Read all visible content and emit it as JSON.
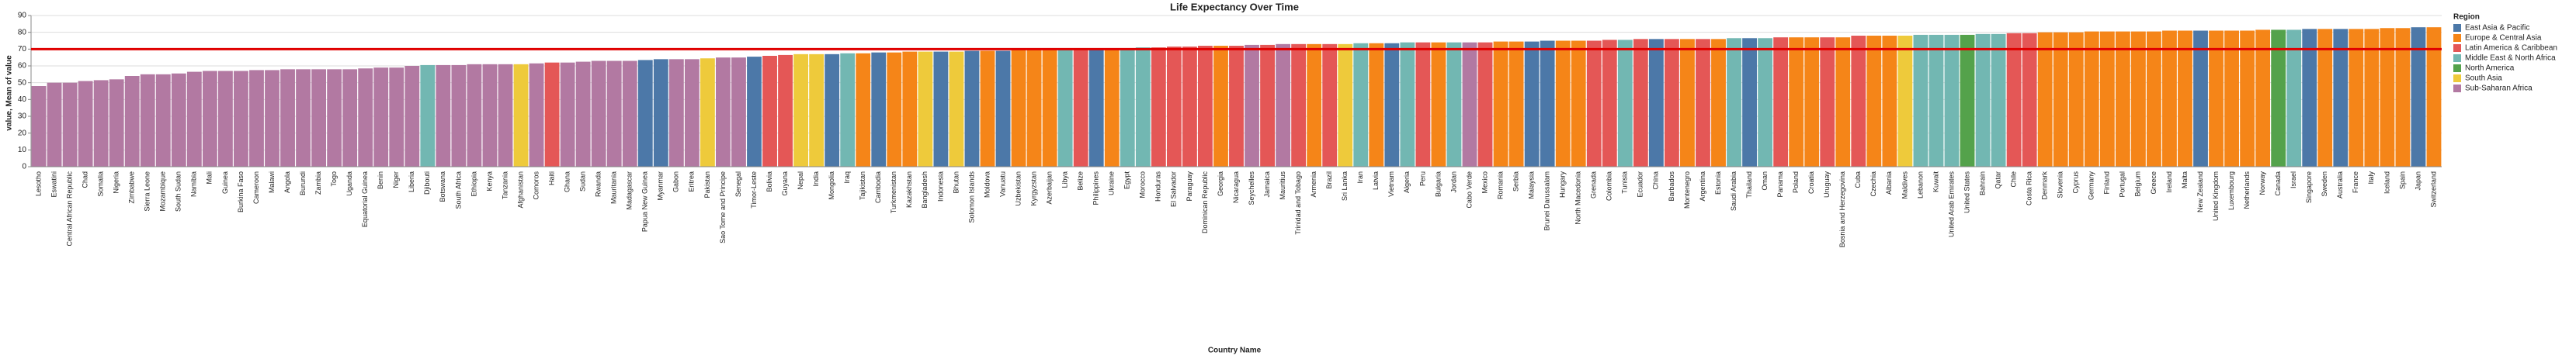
{
  "chart_data": {
    "type": "bar",
    "title": "Life Expectancy Over Time",
    "x_label": "Country Name",
    "y_label": "value, Mean of value",
    "legend_title": "Region",
    "legend": [
      {
        "name": "East Asia & Pacific",
        "color": "#4c78a8"
      },
      {
        "name": "Europe & Central Asia",
        "color": "#f58518"
      },
      {
        "name": "Latin America & Caribbean",
        "color": "#e45756"
      },
      {
        "name": "Middle East & North Africa",
        "color": "#72b7b2"
      },
      {
        "name": "North America",
        "color": "#54a24b"
      },
      {
        "name": "South Asia",
        "color": "#eeca3b"
      },
      {
        "name": "Sub-Saharan Africa",
        "color": "#b279a2"
      }
    ],
    "rule": 70,
    "rule_color": "#e00000",
    "ylim": [
      0,
      90
    ],
    "yticks": [
      0,
      10,
      20,
      30,
      40,
      50,
      60,
      70,
      80,
      90
    ],
    "grid": true,
    "categories": [
      "Lesotho",
      "Eswatini",
      "Central African Republic",
      "Chad",
      "Somalia",
      "Nigeria",
      "Zimbabwe",
      "Sierra Leone",
      "Mozambique",
      "South Sudan",
      "Namibia",
      "Mali",
      "Guinea",
      "Burkina Faso",
      "Cameroon",
      "Malawi",
      "Angola",
      "Burundi",
      "Zambia",
      "Togo",
      "Uganda",
      "Equatorial Guinea",
      "Benin",
      "Niger",
      "Liberia",
      "Djibouti",
      "Botswana",
      "South Africa",
      "Ethiopia",
      "Kenya",
      "Tanzania",
      "Afghanistan",
      "Comoros",
      "Haiti",
      "Ghana",
      "Sudan",
      "Rwanda",
      "Mauritania",
      "Madagascar",
      "Papua New Guinea",
      "Myanmar",
      "Gabon",
      "Eritrea",
      "Pakistan",
      "Sao Tome and Principe",
      "Senegal",
      "Timor-Leste",
      "Bolivia",
      "Guyana",
      "Nepal",
      "India",
      "Mongolia",
      "Iraq",
      "Tajikistan",
      "Cambodia",
      "Turkmenistan",
      "Kazakhstan",
      "Bangladesh",
      "Indonesia",
      "Bhutan",
      "Solomon Islands",
      "Moldova",
      "Vanuatu",
      "Uzbekistan",
      "Kyrgyzstan",
      "Azerbaijan",
      "Libya",
      "Belize",
      "Philippines",
      "Ukraine",
      "Egypt",
      "Morocco",
      "Honduras",
      "El Salvador",
      "Paraguay",
      "Dominican Republic",
      "Georgia",
      "Nicaragua",
      "Seychelles",
      "Jamaica",
      "Mauritius",
      "Trinidad and Tobago",
      "Armenia",
      "Brazil",
      "Sri Lanka",
      "Iran",
      "Latvia",
      "Vietnam",
      "Algeria",
      "Peru",
      "Bulgaria",
      "Jordan",
      "Cabo Verde",
      "Mexico",
      "Romania",
      "Serbia",
      "Malaysia",
      "Brunei Darussalam",
      "Hungary",
      "North Macedonia",
      "Grenada",
      "Colombia",
      "Tunisia",
      "Ecuador",
      "China",
      "Barbados",
      "Montenegro",
      "Argentina",
      "Estonia",
      "Saudi Arabia",
      "Thailand",
      "Oman",
      "Panama",
      "Poland",
      "Croatia",
      "Uruguay",
      "Bosnia and Herzegovina",
      "Cuba",
      "Czechia",
      "Albania",
      "Maldives",
      "Lebanon",
      "Kuwait",
      "United Arab Emirates",
      "United States",
      "Bahrain",
      "Qatar",
      "Chile",
      "Costa Rica",
      "Denmark",
      "Slovenia",
      "Cyprus",
      "Germany",
      "Finland",
      "Portugal",
      "Belgium",
      "Greece",
      "Ireland",
      "Malta",
      "New Zealand",
      "United Kingdom",
      "Luxembourg",
      "Netherlands",
      "Norway",
      "Canada",
      "Israel",
      "Singapore",
      "Sweden",
      "Australia",
      "France",
      "Italy",
      "Iceland",
      "Spain",
      "Japan",
      "Switzerland"
    ],
    "values": [
      48,
      50,
      50,
      51,
      51.5,
      52,
      54,
      55,
      55,
      55.5,
      56.5,
      57,
      57,
      57,
      57.5,
      57.5,
      58,
      58,
      58,
      58,
      58,
      58.5,
      59,
      59,
      60,
      60.5,
      60.5,
      60.5,
      61,
      61,
      61,
      61,
      61.5,
      62,
      62,
      62.5,
      63,
      63,
      63,
      63.5,
      64,
      64,
      64,
      64.5,
      65,
      65,
      65.5,
      66,
      66.5,
      67,
      67,
      67,
      67.5,
      67.5,
      68,
      68,
      68.5,
      68.5,
      68.5,
      68.5,
      69,
      69,
      69,
      69.5,
      70,
      70,
      70,
      70,
      70,
      70.5,
      70.5,
      71,
      71,
      71.5,
      71.5,
      72,
      72,
      72,
      72.5,
      72.5,
      73,
      73,
      73,
      73,
      73,
      73.5,
      73.5,
      73.5,
      74,
      74,
      74,
      74,
      74,
      74,
      74.5,
      74.5,
      74.5,
      75,
      75,
      75,
      75,
      75.5,
      75.5,
      76,
      76,
      76,
      76,
      76,
      76,
      76.5,
      76.5,
      76.5,
      77,
      77,
      77,
      77,
      77,
      78,
      78,
      78,
      78,
      78.5,
      78.5,
      78.5,
      78.5,
      79,
      79,
      79.5,
      79.5,
      80,
      80,
      80,
      80.5,
      80.5,
      80.5,
      80.5,
      80.5,
      81,
      81,
      81,
      81,
      81,
      81,
      81.5,
      81.5,
      81.5,
      82,
      82,
      82,
      82,
      82,
      82.5,
      82.5,
      83,
      83
    ],
    "regions": [
      "Sub-Saharan Africa",
      "Sub-Saharan Africa",
      "Sub-Saharan Africa",
      "Sub-Saharan Africa",
      "Sub-Saharan Africa",
      "Sub-Saharan Africa",
      "Sub-Saharan Africa",
      "Sub-Saharan Africa",
      "Sub-Saharan Africa",
      "Sub-Saharan Africa",
      "Sub-Saharan Africa",
      "Sub-Saharan Africa",
      "Sub-Saharan Africa",
      "Sub-Saharan Africa",
      "Sub-Saharan Africa",
      "Sub-Saharan Africa",
      "Sub-Saharan Africa",
      "Sub-Saharan Africa",
      "Sub-Saharan Africa",
      "Sub-Saharan Africa",
      "Sub-Saharan Africa",
      "Sub-Saharan Africa",
      "Sub-Saharan Africa",
      "Sub-Saharan Africa",
      "Sub-Saharan Africa",
      "Middle East & North Africa",
      "Sub-Saharan Africa",
      "Sub-Saharan Africa",
      "Sub-Saharan Africa",
      "Sub-Saharan Africa",
      "Sub-Saharan Africa",
      "South Asia",
      "Sub-Saharan Africa",
      "Latin America & Caribbean",
      "Sub-Saharan Africa",
      "Sub-Saharan Africa",
      "Sub-Saharan Africa",
      "Sub-Saharan Africa",
      "Sub-Saharan Africa",
      "East Asia & Pacific",
      "East Asia & Pacific",
      "Sub-Saharan Africa",
      "Sub-Saharan Africa",
      "South Asia",
      "Sub-Saharan Africa",
      "Sub-Saharan Africa",
      "East Asia & Pacific",
      "Latin America & Caribbean",
      "Latin America & Caribbean",
      "South Asia",
      "South Asia",
      "East Asia & Pacific",
      "Middle East & North Africa",
      "Europe & Central Asia",
      "East Asia & Pacific",
      "Europe & Central Asia",
      "Europe & Central Asia",
      "South Asia",
      "East Asia & Pacific",
      "South Asia",
      "East Asia & Pacific",
      "Europe & Central Asia",
      "East Asia & Pacific",
      "Europe & Central Asia",
      "Europe & Central Asia",
      "Europe & Central Asia",
      "Middle East & North Africa",
      "Latin America & Caribbean",
      "East Asia & Pacific",
      "Europe & Central Asia",
      "Middle East & North Africa",
      "Middle East & North Africa",
      "Latin America & Caribbean",
      "Latin America & Caribbean",
      "Latin America & Caribbean",
      "Latin America & Caribbean",
      "Europe & Central Asia",
      "Latin America & Caribbean",
      "Sub-Saharan Africa",
      "Latin America & Caribbean",
      "Sub-Saharan Africa",
      "Latin America & Caribbean",
      "Europe & Central Asia",
      "Latin America & Caribbean",
      "South Asia",
      "Middle East & North Africa",
      "Europe & Central Asia",
      "East Asia & Pacific",
      "Middle East & North Africa",
      "Latin America & Caribbean",
      "Europe & Central Asia",
      "Middle East & North Africa",
      "Sub-Saharan Africa",
      "Latin America & Caribbean",
      "Europe & Central Asia",
      "Europe & Central Asia",
      "East Asia & Pacific",
      "East Asia & Pacific",
      "Europe & Central Asia",
      "Europe & Central Asia",
      "Latin America & Caribbean",
      "Latin America & Caribbean",
      "Middle East & North Africa",
      "Latin America & Caribbean",
      "East Asia & Pacific",
      "Latin America & Caribbean",
      "Europe & Central Asia",
      "Latin America & Caribbean",
      "Europe & Central Asia",
      "Middle East & North Africa",
      "East Asia & Pacific",
      "Middle East & North Africa",
      "Latin America & Caribbean",
      "Europe & Central Asia",
      "Europe & Central Asia",
      "Latin America & Caribbean",
      "Europe & Central Asia",
      "Latin America & Caribbean",
      "Europe & Central Asia",
      "Europe & Central Asia",
      "South Asia",
      "Middle East & North Africa",
      "Middle East & North Africa",
      "Middle East & North Africa",
      "North America",
      "Middle East & North Africa",
      "Middle East & North Africa",
      "Latin America & Caribbean",
      "Latin America & Caribbean",
      "Europe & Central Asia",
      "Europe & Central Asia",
      "Europe & Central Asia",
      "Europe & Central Asia",
      "Europe & Central Asia",
      "Europe & Central Asia",
      "Europe & Central Asia",
      "Europe & Central Asia",
      "Europe & Central Asia",
      "Europe & Central Asia",
      "East Asia & Pacific",
      "Europe & Central Asia",
      "Europe & Central Asia",
      "Europe & Central Asia",
      "Europe & Central Asia",
      "North America",
      "Middle East & North Africa",
      "East Asia & Pacific",
      "Europe & Central Asia",
      "East Asia & Pacific",
      "Europe & Central Asia",
      "Europe & Central Asia",
      "Europe & Central Asia",
      "Europe & Central Asia",
      "East Asia & Pacific",
      "Europe & Central Asia"
    ]
  }
}
